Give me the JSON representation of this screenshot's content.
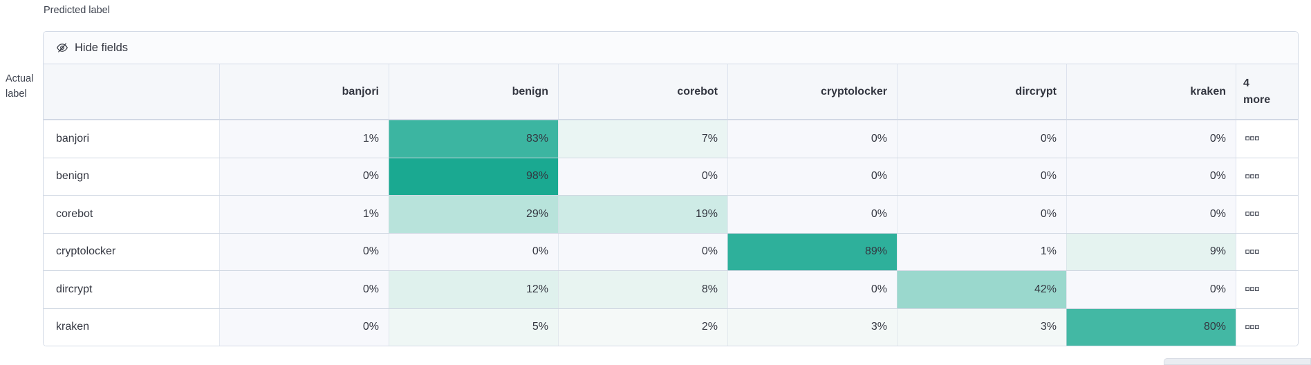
{
  "axis": {
    "predicted": "Predicted label",
    "actual_line1": "Actual",
    "actual_line2": "label"
  },
  "toolbar": {
    "hide_fields_label": "Hide fields",
    "hide_fields_icon": "eye-closed-icon"
  },
  "more_column": {
    "count": "4",
    "word": "more",
    "cell_icon": "boxes-horizontal-icon"
  },
  "colors": {
    "heat_empty": "#F7F8FC",
    "heat_scale_start": "#FAFBFA",
    "heat_scale_end": "#15A78F",
    "header_bg": "#F5F7FA",
    "toolbar_bg": "#FAFBFD",
    "border": "#D3DAE6",
    "text": "#343741"
  },
  "chart_data": {
    "type": "heatmap",
    "title": "Confusion matrix (normalized, percent)",
    "xlabel": "Predicted label",
    "ylabel": "Actual label",
    "value_suffix": "%",
    "value_range": [
      0,
      100
    ],
    "columns": [
      "banjori",
      "benign",
      "corebot",
      "cryptolocker",
      "dircrypt",
      "kraken"
    ],
    "hidden_columns_note": "4 more",
    "rows": [
      {
        "label": "banjori",
        "values": [
          1,
          83,
          7,
          0,
          0,
          0
        ]
      },
      {
        "label": "benign",
        "values": [
          0,
          98,
          0,
          0,
          0,
          0
        ]
      },
      {
        "label": "corebot",
        "values": [
          1,
          29,
          19,
          0,
          0,
          0
        ]
      },
      {
        "label": "cryptolocker",
        "values": [
          0,
          0,
          0,
          89,
          1,
          9
        ]
      },
      {
        "label": "dircrypt",
        "values": [
          0,
          12,
          8,
          0,
          42,
          0
        ]
      },
      {
        "label": "kraken",
        "values": [
          0,
          5,
          2,
          3,
          3,
          80
        ]
      }
    ]
  }
}
